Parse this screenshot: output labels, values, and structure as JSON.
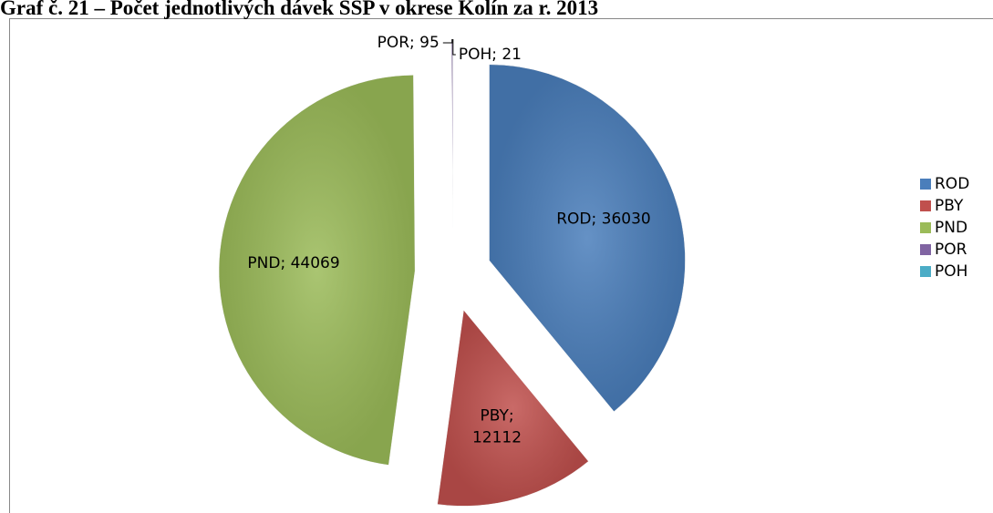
{
  "chart_data": {
    "type": "pie",
    "title": "Graf č. 21 – Počet jednotlivých dávek SSP v okrese Kolín za r. 2013",
    "categories": [
      "ROD",
      "PBY",
      "PND",
      "POR",
      "POH"
    ],
    "values": [
      36030,
      12112,
      44069,
      95,
      21
    ],
    "value_labels": [
      "ROD; 36030",
      "PBY; 12112",
      "PND; 44069",
      "POR; 95",
      "POH; 21"
    ],
    "colors": [
      "#4a7ebb",
      "#c0504d",
      "#9bbb59",
      "#8064a2",
      "#4bacc6"
    ],
    "legend": "right"
  }
}
